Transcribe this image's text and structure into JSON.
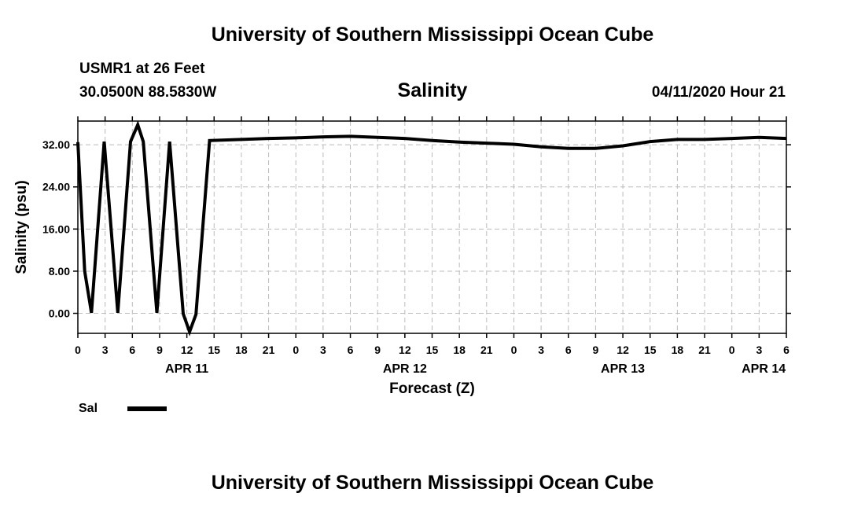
{
  "header": {
    "title_top": "University of Southern Mississippi Ocean Cube",
    "station": "USMR1 at 26 Feet",
    "coords": "30.0500N 88.5830W",
    "variable": "Salinity",
    "datetime": "04/11/2020 Hour 21"
  },
  "footer": {
    "title_bottom": "University of Southern Mississippi Ocean Cube"
  },
  "colors": {
    "line": "#000000",
    "grid": "#bbbbbb"
  },
  "chart_data": {
    "type": "line",
    "title": "Salinity",
    "xlabel": "Forecast (Z)",
    "ylabel": "Salinity (psu)",
    "xlim": [
      0,
      78
    ],
    "ylim": [
      -3.8,
      36.5
    ],
    "yticks": [
      0,
      8,
      16,
      24,
      32
    ],
    "ytick_labels": [
      "0.00",
      "8.00",
      "16.00",
      "24.00",
      "32.00"
    ],
    "xticks": [
      0,
      3,
      6,
      9,
      12,
      15,
      18,
      21,
      24,
      27,
      30,
      33,
      36,
      39,
      42,
      45,
      48,
      51,
      54,
      57,
      60,
      63,
      66,
      69,
      72,
      75,
      78
    ],
    "xtick_labels": [
      "0",
      "3",
      "6",
      "9",
      "12",
      "15",
      "18",
      "21",
      "0",
      "3",
      "6",
      "9",
      "12",
      "15",
      "18",
      "21",
      "0",
      "3",
      "6",
      "9",
      "12",
      "15",
      "18",
      "21",
      "0",
      "3",
      "6"
    ],
    "day_labels": [
      {
        "x": 12,
        "label": "APR 11"
      },
      {
        "x": 36,
        "label": "APR 12"
      },
      {
        "x": 60,
        "label": "APR 13"
      },
      {
        "x": 75.5,
        "label": "APR 14"
      }
    ],
    "series": [
      {
        "name": "Sal",
        "x": [
          0,
          0.75,
          1.5,
          2.9,
          4.4,
          5.8,
          6.6,
          7.2,
          8.7,
          10.1,
          11.6,
          12.3,
          13.0,
          14.5,
          18,
          21,
          24,
          27,
          30,
          33,
          36,
          39,
          42,
          45,
          48,
          51,
          54,
          57,
          60,
          63,
          66,
          69,
          72,
          75,
          78
        ],
        "y": [
          32.5,
          8.0,
          0.1,
          32.6,
          0.1,
          32.6,
          35.8,
          32.6,
          0.1,
          32.6,
          -0.1,
          -3.5,
          -0.2,
          32.8,
          33.0,
          33.2,
          33.3,
          33.5,
          33.6,
          33.4,
          33.2,
          32.8,
          32.5,
          32.3,
          32.1,
          31.6,
          31.3,
          31.3,
          31.8,
          32.6,
          33.0,
          33.0,
          33.2,
          33.4,
          33.2
        ]
      }
    ],
    "legend": {
      "label": "Sal",
      "placement": "bottom-left"
    }
  }
}
